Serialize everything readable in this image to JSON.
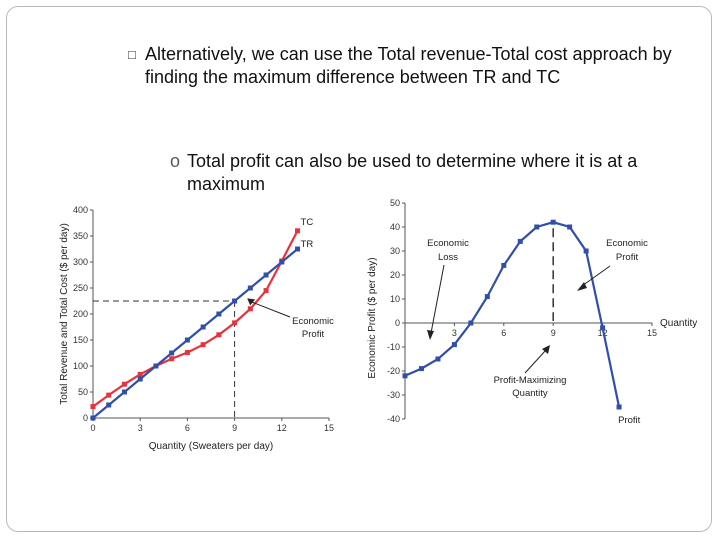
{
  "slide": {
    "bullet_marker": "□",
    "bullet_text": "Alternatively, we can use the Total revenue-Total cost approach by finding the maximum difference between TR and TC",
    "sub_bullet_marker": "o",
    "sub_bullet_text": "Total profit can also be used to determine where it is at a maximum"
  },
  "colors": {
    "tc": "#e8323c",
    "tr": "#2f4fa8",
    "profit": "#2f4fa8",
    "axis": "#555555"
  },
  "chart_data": [
    {
      "type": "line",
      "xlabel": "Quantity (Sweaters per day)",
      "ylabel": "Total Revenue and Total Cost ($ per day)",
      "xlim": [
        0,
        15
      ],
      "ylim": [
        0,
        400
      ],
      "x_ticks": [
        "0",
        "3",
        "6",
        "9",
        "12",
        "15"
      ],
      "y_ticks": [
        "0",
        "50",
        "100",
        "150",
        "200",
        "250",
        "300",
        "350",
        "400"
      ],
      "x": [
        0,
        1,
        2,
        3,
        4,
        5,
        6,
        7,
        8,
        9,
        10,
        11,
        12,
        13
      ],
      "series": [
        {
          "name": "TC",
          "values": [
            22,
            44,
            65,
            84,
            100,
            114,
            126,
            141,
            160,
            183,
            210,
            245,
            302,
            360
          ]
        },
        {
          "name": "TR",
          "values": [
            0,
            25,
            50,
            75,
            100,
            125,
            150,
            175,
            200,
            225,
            250,
            275,
            300,
            325
          ]
        }
      ],
      "annotations": [
        {
          "text": "Economic Profit",
          "at_x": 9.8,
          "at_y": 230
        }
      ],
      "reference_lines": {
        "x": 9,
        "y": 225
      }
    },
    {
      "type": "line",
      "xlabel": "Quantity",
      "ylabel": "Economic Profit ($ per day)",
      "xlim": [
        0,
        15
      ],
      "ylim": [
        -40,
        50
      ],
      "x_ticks": [
        "3",
        "6",
        "9",
        "12",
        "15"
      ],
      "y_ticks": [
        "50",
        "40",
        "30",
        "20",
        "10",
        "0",
        "-10",
        "-20",
        "-30",
        "-40"
      ],
      "x": [
        0,
        1,
        2,
        3,
        4,
        5,
        6,
        7,
        8,
        9,
        10,
        11,
        12,
        13
      ],
      "series": [
        {
          "name": "Profit",
          "values": [
            -22,
            -19,
            -15,
            -9,
            0,
            11,
            24,
            34,
            40,
            42,
            40,
            30,
            -2,
            -35
          ]
        }
      ],
      "annotations": [
        {
          "text": "Economic Loss"
        },
        {
          "text": "Economic Profit"
        },
        {
          "text": "Profit-Maximizing Quantity"
        }
      ],
      "reference_lines": {
        "x": 9
      }
    }
  ]
}
